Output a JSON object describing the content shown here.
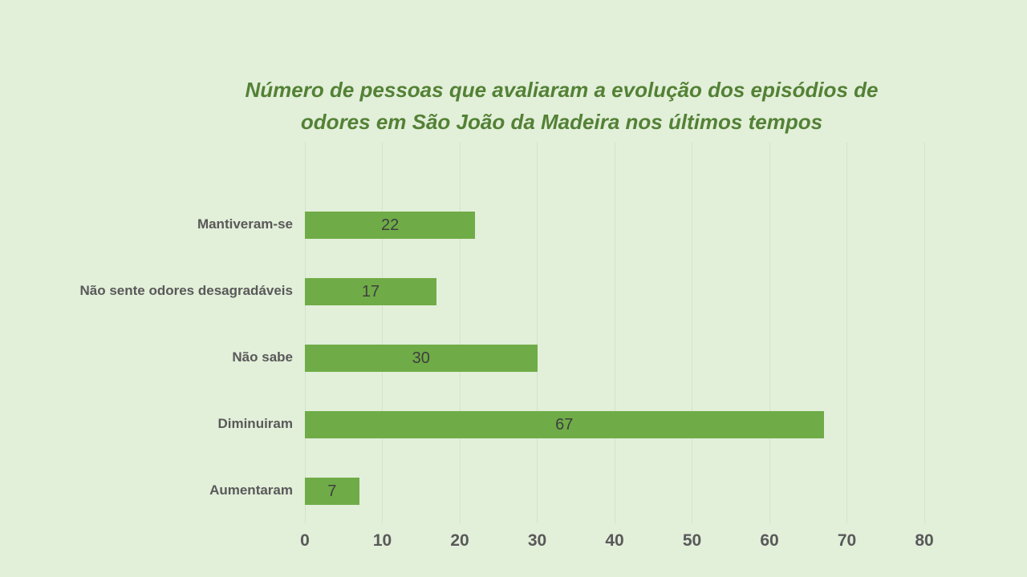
{
  "slide": {
    "background_color": "#E2EFD9"
  },
  "chart_data": {
    "type": "bar",
    "orientation": "horizontal",
    "title": "Número de pessoas que avaliaram a evolução dos episódios de odores em São João da Madeira nos últimos tempos",
    "title_lines": [
      "Número de pessoas que avaliaram a evolução dos episódios de",
      "odores em São João da Madeira nos últimos tempos"
    ],
    "categories": [
      "Mantiveram-se",
      "Não sente odores desagradáveis",
      "Não sabe",
      "Diminuiram",
      "Aumentaram"
    ],
    "values": [
      22,
      17,
      30,
      67,
      7
    ],
    "xlabel": "",
    "ylabel": "",
    "xlim": [
      0,
      80
    ],
    "x_ticks": [
      0,
      10,
      20,
      30,
      40,
      50,
      60,
      70,
      80
    ],
    "grid": true,
    "legend": false,
    "data_labels": "inside-center",
    "colors": {
      "bar": "#6FAC47",
      "title": "#538135",
      "category_label": "#595959",
      "tick_label": "#595959",
      "value_label": "#3F3F3F",
      "gridline": "#D5E2CB",
      "background": "#E2EFD9"
    }
  }
}
